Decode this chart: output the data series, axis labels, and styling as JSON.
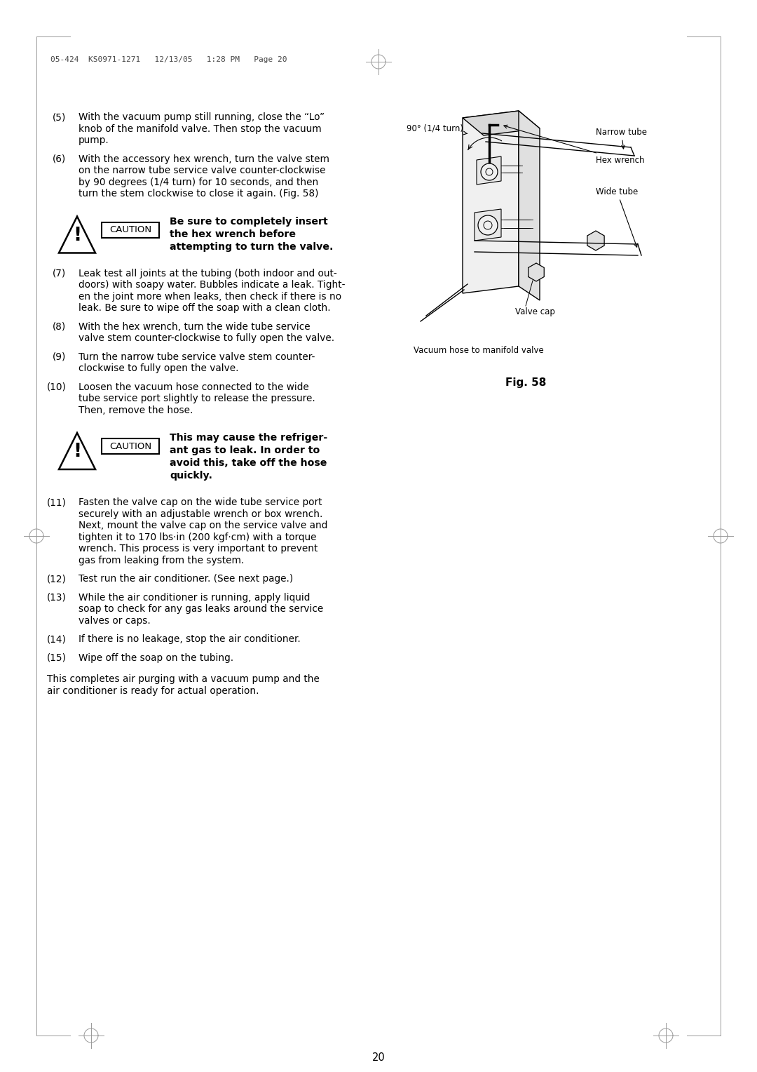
{
  "page_number": "20",
  "header_text": "05-424  KS0971-1271   12/13/05   1:28 PM   Page 20",
  "background_color": "#ffffff",
  "text_color": "#000000",
  "body_items": [
    {
      "num": "(5)",
      "lines": [
        "With the vacuum pump still running, close the “Lo”",
        "knob of the manifold valve. Then stop the vacuum",
        "pump."
      ]
    },
    {
      "num": "(6)",
      "lines": [
        "With the accessory hex wrench, turn the valve stem",
        "on the narrow tube service valve counter-clockwise",
        "by 90 degrees (1/4 turn) for 10 seconds, and then",
        "turn the stem clockwise to close it again. (Fig. 58)"
      ]
    },
    {
      "num": "(7)",
      "lines": [
        "Leak test all joints at the tubing (both indoor and out-",
        "doors) with soapy water. Bubbles indicate a leak. Tight-",
        "en the joint more when leaks, then check if there is no",
        "leak. Be sure to wipe off the soap with a clean cloth."
      ]
    },
    {
      "num": "(8)",
      "lines": [
        "With the hex wrench, turn the wide tube service",
        "valve stem counter-clockwise to fully open the valve."
      ]
    },
    {
      "num": "(9)",
      "lines": [
        "Turn the narrow tube service valve stem counter-",
        "clockwise to fully open the valve."
      ]
    },
    {
      "num": "(10)",
      "lines": [
        "Loosen the vacuum hose connected to the wide",
        "tube service port slightly to release the pressure.",
        "Then, remove the hose."
      ]
    },
    {
      "num": "(11)",
      "lines": [
        "Fasten the valve cap on the wide tube service port",
        "securely with an adjustable wrench or box wrench.",
        "Next, mount the valve cap on the service valve and",
        "tighten it to 170 lbs·in (200 kgf·cm) with a torque",
        "wrench. This process is very important to prevent",
        "gas from leaking from the system."
      ]
    },
    {
      "num": "(12)",
      "lines": [
        "Test run the air conditioner. (See next page.)"
      ]
    },
    {
      "num": "(13)",
      "lines": [
        "While the air conditioner is running, apply liquid",
        "soap to check for any gas leaks around the service",
        "valves or caps."
      ]
    },
    {
      "num": "(14)",
      "lines": [
        "If there is no leakage, stop the air conditioner."
      ]
    },
    {
      "num": "(15)",
      "lines": [
        "Wipe off the soap on the tubing."
      ]
    }
  ],
  "caution1_bold": [
    "Be sure to completely insert",
    "the hex wrench before",
    "attempting to turn the valve."
  ],
  "caution2_bold": [
    "This may cause the refriger-",
    "ant gas to leak. In order to",
    "avoid this, take off the hose",
    "quickly."
  ],
  "footer_lines": [
    "This completes air purging with a vacuum pump and the",
    "air conditioner is ready for actual operation."
  ],
  "fig_label": "Fig. 58",
  "ann_angle": "90° (1/4 turn)",
  "ann_narrow": "Narrow tube",
  "ann_hex": "Hex wrench",
  "ann_wide": "Wide tube",
  "ann_valvecap": "Valve cap",
  "ann_vacuum": "Vacuum hose to manifold valve"
}
